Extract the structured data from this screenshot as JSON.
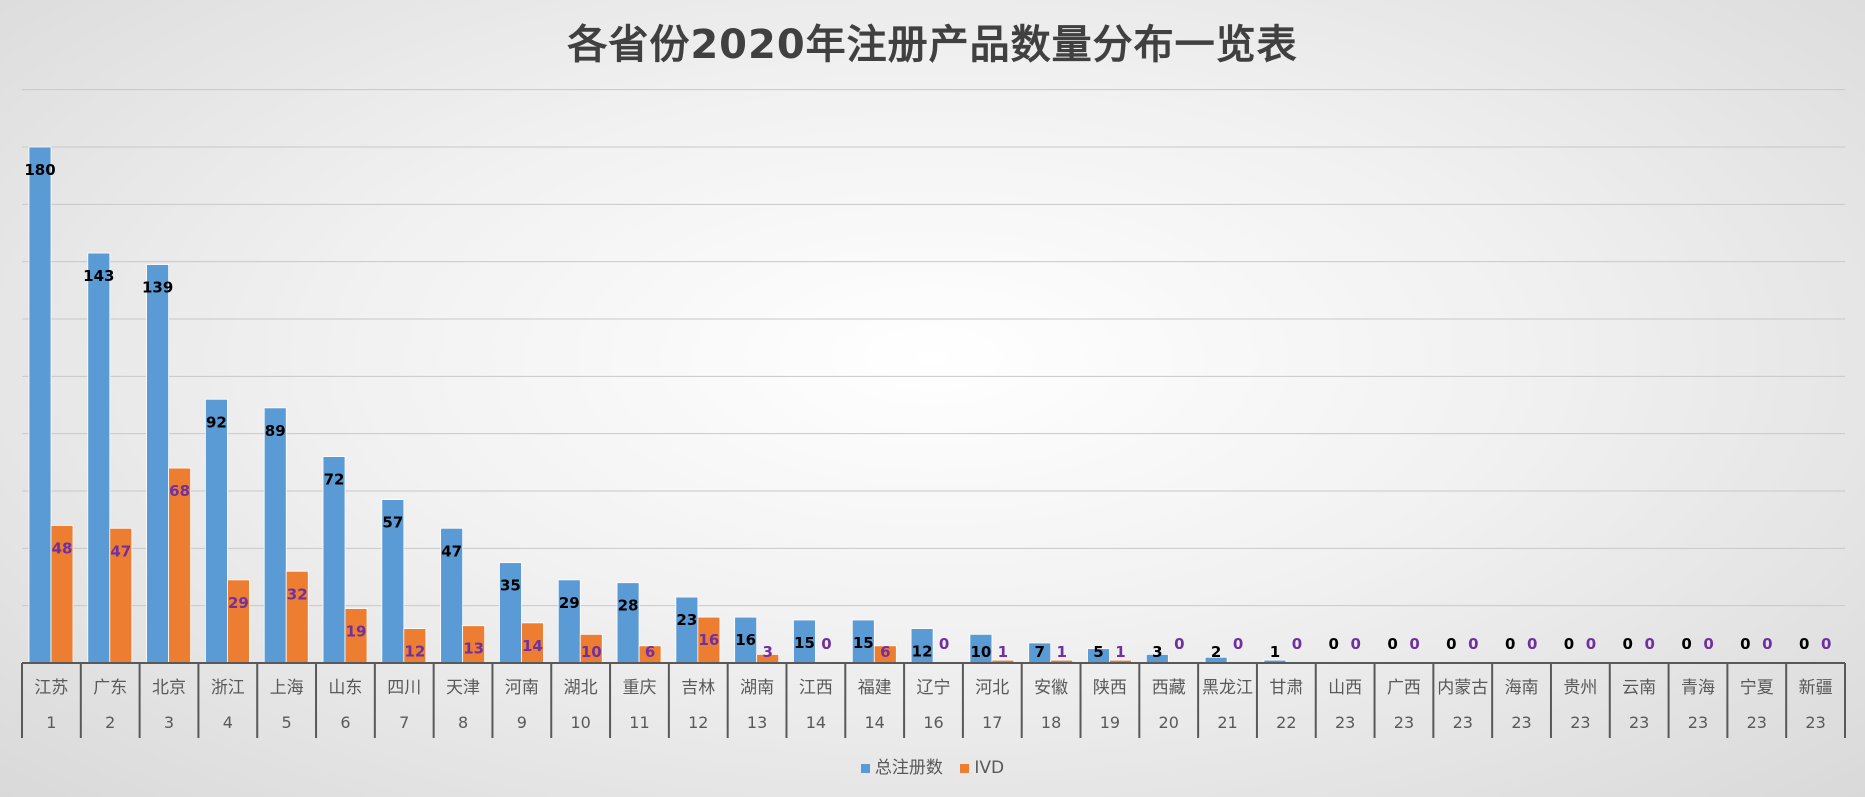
{
  "colors": {
    "total": "#5b9bd5",
    "ivd": "#ed7d31",
    "total_label": "#000000",
    "ivd_label": "#7030a0"
  },
  "chart_data": {
    "type": "bar",
    "title": "各省份2020年注册产品数量分布一览表",
    "categories": [
      "江苏",
      "广东",
      "北京",
      "浙江",
      "上海",
      "山东",
      "四川",
      "天津",
      "河南",
      "湖北",
      "重庆",
      "吉林",
      "湖南",
      "江西",
      "福建",
      "辽宁",
      "河北",
      "安徽",
      "陕西",
      "西藏",
      "黑龙江",
      "甘肃",
      "山西",
      "广西",
      "内蒙古",
      "海南",
      "贵州",
      "云南",
      "青海",
      "宁夏",
      "新疆"
    ],
    "ranks": [
      "1",
      "2",
      "3",
      "4",
      "5",
      "6",
      "7",
      "8",
      "9",
      "10",
      "11",
      "12",
      "13",
      "14",
      "14",
      "16",
      "17",
      "18",
      "19",
      "20",
      "21",
      "22",
      "23",
      "23",
      "23",
      "23",
      "23",
      "23",
      "23",
      "23",
      "23"
    ],
    "series": [
      {
        "name": "总注册数",
        "values": [
          180,
          143,
          139,
          92,
          89,
          72,
          57,
          47,
          35,
          29,
          28,
          23,
          16,
          15,
          15,
          12,
          10,
          7,
          5,
          3,
          2,
          1,
          0,
          0,
          0,
          0,
          0,
          0,
          0,
          0,
          0
        ]
      },
      {
        "name": "IVD",
        "values": [
          48,
          47,
          68,
          29,
          32,
          19,
          12,
          13,
          14,
          10,
          6,
          16,
          3,
          0,
          6,
          0,
          1,
          1,
          1,
          0,
          0,
          0,
          0,
          0,
          0,
          0,
          0,
          0,
          0,
          0,
          0
        ]
      }
    ],
    "ylim": [
      0,
      180
    ],
    "grid": true,
    "legend_position": "bottom"
  }
}
